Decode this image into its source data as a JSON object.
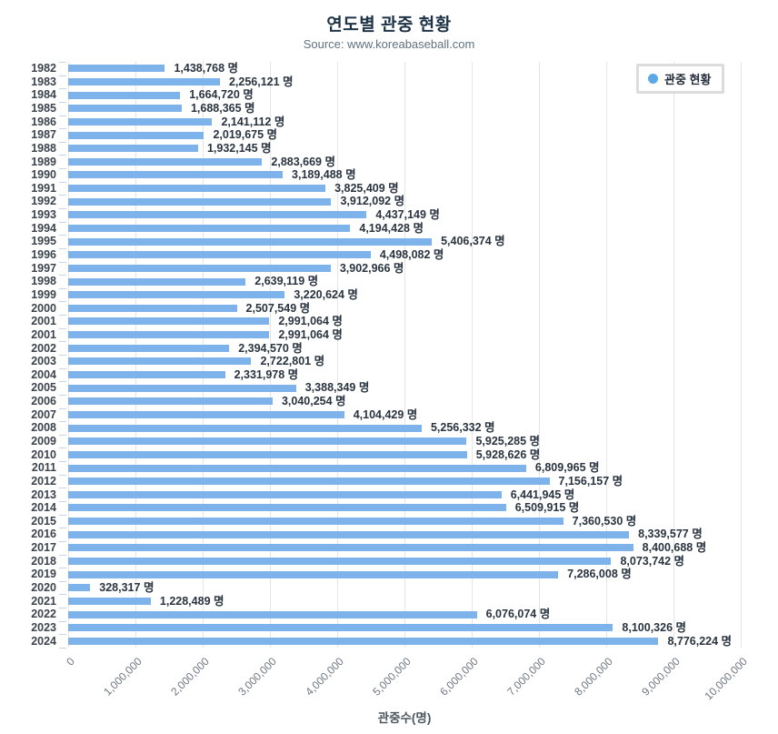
{
  "header": {
    "title": "연도별 관중 현황",
    "subtitle": "Source: www.koreabaseball.com"
  },
  "legend": {
    "label": "관중 현황",
    "position": "top-right",
    "marker": "circle-icon"
  },
  "colors": {
    "bar": "#7db2ea",
    "legend_marker": "#5ba9e6",
    "gridline": "#e5e5e5",
    "title": "#1d3246",
    "subtitle": "#607280",
    "axis_text": "#6e7680",
    "year_text": "#3c444d",
    "value_text": "#2a3440"
  },
  "chart_data": {
    "type": "bar",
    "orientation": "horizontal",
    "title": "연도별 관중 현황",
    "subtitle": "Source: www.koreabaseball.com",
    "xlabel": "관중수(명)",
    "ylabel": "",
    "xlim": [
      0,
      10000000
    ],
    "x_ticks": [
      "0",
      "1,000,000",
      "2,000,000",
      "3,000,000",
      "4,000,000",
      "5,000,000",
      "6,000,000",
      "7,000,000",
      "8,000,000",
      "9,000,000",
      "10,000,000"
    ],
    "x_tick_values": [
      0,
      1000000,
      2000000,
      3000000,
      4000000,
      5000000,
      6000000,
      7000000,
      8000000,
      9000000,
      10000000
    ],
    "grid": true,
    "legend": {
      "label": "관중 현황",
      "position": "top-right"
    },
    "categories": [
      "1982",
      "1983",
      "1984",
      "1985",
      "1986",
      "1987",
      "1988",
      "1989",
      "1990",
      "1991",
      "1992",
      "1993",
      "1994",
      "1995",
      "1996",
      "1997",
      "1998",
      "1999",
      "2000",
      "2001",
      "2001",
      "2002",
      "2003",
      "2004",
      "2005",
      "2006",
      "2007",
      "2008",
      "2009",
      "2010",
      "2011",
      "2012",
      "2013",
      "2014",
      "2015",
      "2016",
      "2017",
      "2018",
      "2019",
      "2020",
      "2021",
      "2022",
      "2023",
      "2024"
    ],
    "values": [
      1438768,
      2256121,
      1664720,
      1688365,
      2141112,
      2019675,
      1932145,
      2883669,
      3189488,
      3825409,
      3912092,
      4437149,
      4194428,
      5406374,
      4498082,
      3902966,
      2639119,
      3220624,
      2507549,
      2991064,
      2991064,
      2394570,
      2722801,
      2331978,
      3388349,
      3040254,
      4104429,
      5256332,
      5925285,
      5928626,
      6809965,
      7156157,
      6441945,
      6509915,
      7360530,
      8339577,
      8400688,
      8073742,
      7286008,
      328317,
      1228489,
      6076074,
      8100326,
      8776224
    ],
    "value_labels": [
      "1,438,768 명",
      "2,256,121 명",
      "1,664,720 명",
      "1,688,365 명",
      "2,141,112 명",
      "2,019,675 명",
      "1,932,145 명",
      "2,883,669 명",
      "3,189,488 명",
      "3,825,409 명",
      "3,912,092 명",
      "4,437,149 명",
      "4,194,428 명",
      "5,406,374 명",
      "4,498,082 명",
      "3,902,966 명",
      "2,639,119 명",
      "3,220,624 명",
      "2,507,549 명",
      "2,991,064 명",
      "2,991,064 명",
      "2,394,570 명",
      "2,722,801 명",
      "2,331,978 명",
      "3,388,349 명",
      "3,040,254 명",
      "4,104,429 명",
      "5,256,332 명",
      "5,925,285 명",
      "5,928,626 명",
      "6,809,965 명",
      "7,156,157 명",
      "6,441,945 명",
      "6,509,915 명",
      "7,360,530 명",
      "8,339,577 명",
      "8,400,688 명",
      "8,073,742 명",
      "7,286,008 명",
      "328,317 명",
      "1,228,489 명",
      "6,076,074 명",
      "8,100,326 명",
      "8,776,224 명"
    ]
  }
}
